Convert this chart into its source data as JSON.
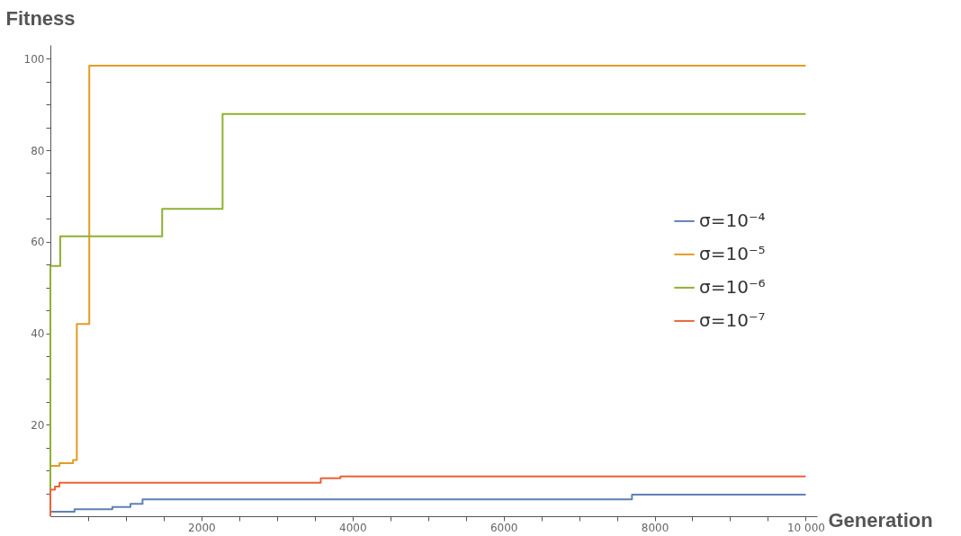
{
  "chart_data": {
    "type": "step",
    "xlabel": "Generation",
    "ylabel": "Fitness",
    "xlim": [
      0,
      10150
    ],
    "ylim": [
      0,
      103
    ],
    "xticks": [
      {
        "value": 500,
        "label": null
      },
      {
        "value": 1000,
        "label": null
      },
      {
        "value": 1500,
        "label": null
      },
      2000,
      {
        "value": 2500,
        "label": null
      },
      {
        "value": 3000,
        "label": null
      },
      {
        "value": 3500,
        "label": null
      },
      4000,
      {
        "value": 4500,
        "label": null
      },
      {
        "value": 5000,
        "label": null
      },
      {
        "value": 5500,
        "label": null
      },
      6000,
      {
        "value": 6500,
        "label": null
      },
      {
        "value": 7000,
        "label": null
      },
      {
        "value": 7500,
        "label": null
      },
      8000,
      {
        "value": 8500,
        "label": null
      },
      {
        "value": 9000,
        "label": null
      },
      {
        "value": 9500,
        "label": null
      },
      {
        "value": 10000,
        "label": "10 000"
      }
    ],
    "yticks": [
      {
        "value": 5,
        "label": null
      },
      {
        "value": 10,
        "label": null
      },
      {
        "value": 15,
        "label": null
      },
      20,
      {
        "value": 25,
        "label": null
      },
      {
        "value": 30,
        "label": null
      },
      {
        "value": 35,
        "label": null
      },
      40,
      {
        "value": 45,
        "label": null
      },
      {
        "value": 50,
        "label": null
      },
      {
        "value": 55,
        "label": null
      },
      60,
      {
        "value": 65,
        "label": null
      },
      {
        "value": 70,
        "label": null
      },
      {
        "value": 75,
        "label": null
      },
      80,
      {
        "value": 85,
        "label": null
      },
      {
        "value": 90,
        "label": null
      },
      {
        "value": 95,
        "label": null
      },
      100
    ],
    "grid": false,
    "legend": "right",
    "marker": "none",
    "line_style": "solid",
    "series": [
      {
        "name": "σ=10⁻⁴",
        "color": "#5e81b5",
        "x": [
          0,
          0,
          320,
          820,
          1060,
          1220,
          7700,
          10000
        ],
        "values": [
          0,
          1.0,
          1.5,
          2.0,
          2.7,
          3.7,
          4.7,
          4.7
        ]
      },
      {
        "name": "σ=10⁻⁵",
        "color": "#e19c24",
        "x": [
          0,
          0,
          120,
          300,
          350,
          515,
          10000
        ],
        "values": [
          0,
          11,
          11.6,
          12.3,
          42,
          98.5,
          98.5
        ]
      },
      {
        "name": "σ=10⁻⁶",
        "color": "#8fb032",
        "x": [
          0,
          0,
          130,
          1480,
          2280,
          10000
        ],
        "values": [
          0,
          54.7,
          61.2,
          67.2,
          87.9,
          87.9
        ]
      },
      {
        "name": "σ=10⁻⁷",
        "color": "#eb6235",
        "x": [
          0,
          0,
          60,
          120,
          3580,
          3840,
          10000
        ],
        "values": [
          0,
          5.8,
          6.5,
          7.3,
          8.3,
          8.7,
          8.7
        ]
      }
    ]
  }
}
